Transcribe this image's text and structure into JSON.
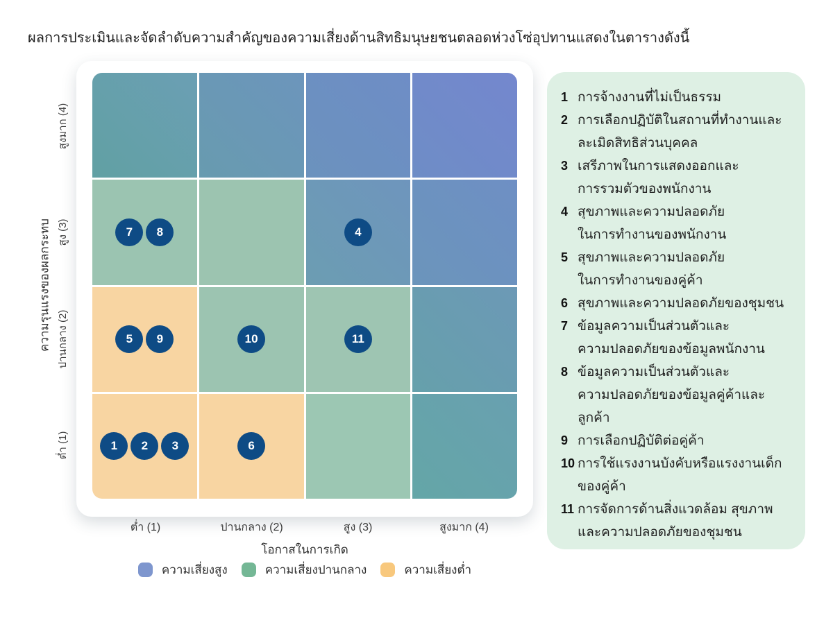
{
  "title": "ผลการประเมินและจัดลำดับความสำคัญของความเสี่ยงด้านสิทธิมนุษยชนตลอดห่วงโซ่อุปทานแสดงในตารางดังนี้",
  "chart_data": {
    "type": "heatmap",
    "xlabel": "โอกาสในการเกิด",
    "ylabel": "ความรุนแรงของผลกระทบ",
    "x_ticklabels": [
      "ต่ำ (1)",
      "ปานกลาง (2)",
      "สูง (3)",
      "สูงมาก (4)"
    ],
    "y_ticklabels_top_to_bottom": [
      "สูงมาก (4)",
      "สูง (3)",
      "ปานกลาง (2)",
      "ต่ำ (1)"
    ],
    "axis_scale": [
      1,
      4
    ],
    "grid": {
      "rows": 4,
      "cols": 4,
      "gridlines": "white"
    },
    "legend_position": "bottom",
    "legend": [
      {
        "label": "ความเสี่ยงสูง",
        "color": "#7E96CE"
      },
      {
        "label": "ความเสี่ยงปานกลาง",
        "color": "#74B795"
      },
      {
        "label": "ความเสี่ยงต่ำ",
        "color": "#F8C87D"
      }
    ],
    "point_color": "#0E4B85",
    "cells": [
      {
        "severity": 4,
        "likelihood": 1,
        "risk": "high",
        "bg": "linear-gradient(45deg,#61A0A3,#6B9FB4)"
      },
      {
        "severity": 4,
        "likelihood": 2,
        "risk": "high",
        "bg": "linear-gradient(45deg,#689BAF,#6C95BC)"
      },
      {
        "severity": 4,
        "likelihood": 3,
        "risk": "high",
        "bg": "linear-gradient(45deg,#6B92BD,#6E8DC6)"
      },
      {
        "severity": 4,
        "likelihood": 4,
        "risk": "high",
        "bg": "linear-gradient(45deg,#6E8DC6,#7487CE)"
      },
      {
        "severity": 3,
        "likelihood": 1,
        "risk": "medium",
        "bg": "#9BC4B1"
      },
      {
        "severity": 3,
        "likelihood": 2,
        "risk": "medium",
        "bg": "#9CC4B0"
      },
      {
        "severity": 3,
        "likelihood": 3,
        "risk": "high",
        "bg": "linear-gradient(45deg,#6C9DB2,#6E95BD)"
      },
      {
        "severity": 3,
        "likelihood": 4,
        "risk": "high",
        "bg": "linear-gradient(45deg,#6B95BB,#6E8FC4)"
      },
      {
        "severity": 2,
        "likelihood": 1,
        "risk": "low",
        "bg": "#F8D5A2"
      },
      {
        "severity": 2,
        "likelihood": 2,
        "risk": "medium",
        "bg": "#9CC4B1"
      },
      {
        "severity": 2,
        "likelihood": 3,
        "risk": "medium",
        "bg": "#9EC5B2"
      },
      {
        "severity": 2,
        "likelihood": 4,
        "risk": "high",
        "bg": "linear-gradient(45deg,#66A0AB,#6C99B6)"
      },
      {
        "severity": 1,
        "likelihood": 1,
        "risk": "low",
        "bg": "#F8D5A2"
      },
      {
        "severity": 1,
        "likelihood": 2,
        "risk": "low",
        "bg": "#F8D5A2"
      },
      {
        "severity": 1,
        "likelihood": 3,
        "risk": "medium",
        "bg": "#9CC7B3"
      },
      {
        "severity": 1,
        "likelihood": 4,
        "risk": "high",
        "bg": "linear-gradient(45deg,#64A6A7,#69A0B0)"
      }
    ],
    "points": [
      {
        "id": 1,
        "likelihood": 1,
        "severity": 1
      },
      {
        "id": 2,
        "likelihood": 1,
        "severity": 1
      },
      {
        "id": 3,
        "likelihood": 1,
        "severity": 1
      },
      {
        "id": 4,
        "likelihood": 3,
        "severity": 3
      },
      {
        "id": 5,
        "likelihood": 1,
        "severity": 2
      },
      {
        "id": 6,
        "likelihood": 2,
        "severity": 1
      },
      {
        "id": 7,
        "likelihood": 1,
        "severity": 3
      },
      {
        "id": 8,
        "likelihood": 1,
        "severity": 3
      },
      {
        "id": 9,
        "likelihood": 1,
        "severity": 2
      },
      {
        "id": 10,
        "likelihood": 2,
        "severity": 2
      },
      {
        "id": 11,
        "likelihood": 3,
        "severity": 2
      }
    ]
  },
  "risk_list": {
    "panel_bg": "#DEF0E4",
    "items": [
      {
        "num": "1",
        "text": "การจ้างงานที่ไม่เป็นธรรม"
      },
      {
        "num": "2",
        "text": "การเลือกปฏิบัติในสถานที่ทำงานและ\nละเมิดสิทธิส่วนบุคคล"
      },
      {
        "num": "3",
        "text": "เสรีภาพในการแสดงออกและ\nการรวมตัวของพนักงาน"
      },
      {
        "num": "4",
        "text": "สุขภาพและความปลอดภัย\nในการทำงานของพนักงาน"
      },
      {
        "num": "5",
        "text": "สุขภาพและความปลอดภัย\nในการทำงานของคู่ค้า"
      },
      {
        "num": "6",
        "text": "สุขภาพและความปลอดภัยของชุมชน"
      },
      {
        "num": "7",
        "text": "ข้อมูลความเป็นส่วนตัวและ\nความปลอดภัยของข้อมูลพนักงาน"
      },
      {
        "num": "8",
        "text": "ข้อมูลความเป็นส่วนตัวและ\nความปลอดภัยของข้อมูลคู่ค้าและลูกค้า"
      },
      {
        "num": "9",
        "text": "การเลือกปฏิบัติต่อคู่ค้า"
      },
      {
        "num": "10",
        "text": "การใช้แรงงานบังคับหรือแรงงานเด็ก\nของคู่ค้า"
      },
      {
        "num": "11",
        "text": "การจัดการด้านสิ่งแวดล้อม สุขภาพ\nและความปลอดภัยของชุมชน"
      }
    ]
  }
}
